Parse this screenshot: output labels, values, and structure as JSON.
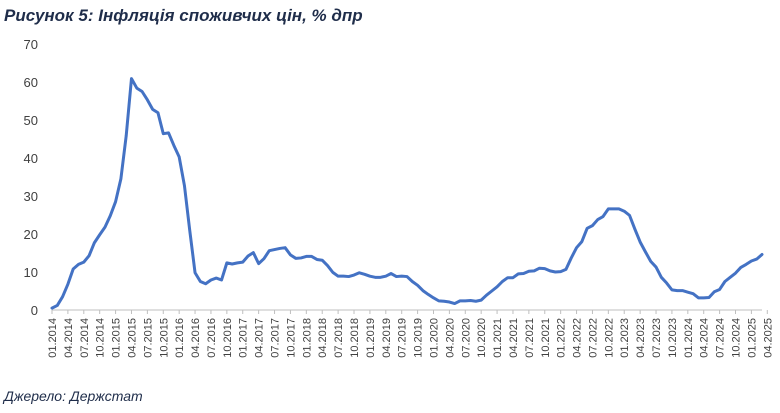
{
  "chart_data": {
    "type": "line",
    "title": "Рисунок 5: Інфляція споживчих цін, % дпр",
    "source": "Джерело: Держстат",
    "xlabel": "",
    "ylabel": "",
    "ylim": [
      0,
      70
    ],
    "yticks": [
      0,
      10,
      20,
      30,
      40,
      50,
      60,
      70
    ],
    "xticks": [
      "01.2014",
      "04.2014",
      "07.2014",
      "10.2014",
      "01.2015",
      "04.2015",
      "07.2015",
      "10.2015",
      "01.2016",
      "04.2016",
      "07.2016",
      "10.2016",
      "01.2017",
      "04.2017",
      "07.2017",
      "10.2017",
      "01.2018",
      "04.2018",
      "07.2018",
      "10.2018",
      "01.2019",
      "04.2019",
      "07.2019",
      "10.2019",
      "01.2020",
      "04.2020",
      "07.2020",
      "10.2020",
      "01.2021",
      "04.2021",
      "07.2021",
      "10.2021",
      "01.2022",
      "04.2022",
      "07.2022",
      "10.2022",
      "01.2023",
      "04.2023",
      "07.2023",
      "10.2023",
      "01.2024",
      "04.2024",
      "07.2024",
      "10.2024",
      "01.2025",
      "04.2025"
    ],
    "grid": false,
    "legend": "none",
    "line_color": "#4472c4",
    "series": [
      {
        "values": [
          0.5,
          1.2,
          3.5,
          6.8,
          10.8,
          12.0,
          12.6,
          14.3,
          17.7,
          19.8,
          21.8,
          24.8,
          28.5,
          34.5,
          45.8,
          60.9,
          58.4,
          57.5,
          55.3,
          52.8,
          51.9,
          46.4,
          46.6,
          43.3,
          40.3,
          32.7,
          20.9,
          9.8,
          7.5,
          6.9,
          7.9,
          8.4,
          7.9,
          12.4,
          12.1,
          12.4,
          12.6,
          14.2,
          15.1,
          12.2,
          13.5,
          15.6,
          15.9,
          16.2,
          16.4,
          14.5,
          13.6,
          13.7,
          14.1,
          14.1,
          13.3,
          13.1,
          11.7,
          9.9,
          8.9,
          8.9,
          8.8,
          9.2,
          9.8,
          9.4,
          8.9,
          8.6,
          8.6,
          8.9,
          9.6,
          8.8,
          8.9,
          8.8,
          7.5,
          6.5,
          5.1,
          4.1,
          3.2,
          2.4,
          2.3,
          2.1,
          1.7,
          2.4,
          2.4,
          2.5,
          2.3,
          2.6,
          3.9,
          5.0,
          6.1,
          7.5,
          8.5,
          8.5,
          9.5,
          9.6,
          10.2,
          10.3,
          11.0,
          10.9,
          10.3,
          10.0,
          10.1,
          10.7,
          13.7,
          16.4,
          18.0,
          21.5,
          22.2,
          23.8,
          24.6,
          26.6,
          26.6,
          26.6,
          26.0,
          24.9,
          21.3,
          17.9,
          15.3,
          12.8,
          11.3,
          8.6,
          7.1,
          5.3,
          5.1,
          5.1,
          4.7,
          4.3,
          3.2,
          3.2,
          3.3,
          4.8,
          5.4,
          7.5,
          8.6,
          9.7,
          11.2,
          12.0,
          12.9,
          13.4,
          14.6
        ]
      }
    ]
  }
}
